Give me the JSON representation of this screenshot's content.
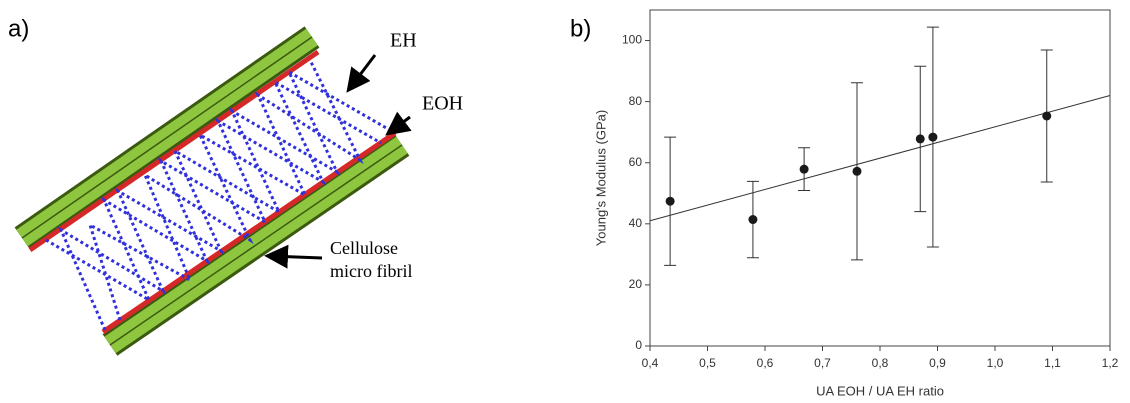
{
  "diagram": {
    "panel_label": "a)",
    "labels": [
      "EH",
      "EOH",
      "Cellulose",
      "micro fibril"
    ]
  },
  "chart_data": {
    "type": "scatter",
    "panel_label": "b)",
    "x_label": "UA EOH / UA EH ratio",
    "y_label": "Young's Modulus (GPa)",
    "x": [
      0.435,
      0.579,
      0.668,
      0.76,
      0.87,
      0.892,
      1.09
    ],
    "values": [
      47.4,
      41.4,
      57.9,
      57.2,
      67.8,
      68.4,
      75.3
    ],
    "errors": [
      21,
      12.5,
      7,
      29,
      23.8,
      36,
      21.6
    ],
    "color": "#1a1a1a",
    "fit_line": {
      "x": [
        0.4,
        1.2
      ],
      "y": [
        41,
        82
      ]
    },
    "xlim": [
      0.4,
      1.2
    ],
    "xticks": [
      {
        "value": 0.4,
        "label": "0,4"
      },
      {
        "value": 0.5,
        "label": "0,5"
      },
      {
        "value": 0.6,
        "label": "0,6"
      },
      {
        "value": 0.7,
        "label": "0,7"
      },
      {
        "value": 0.8,
        "label": "0,8"
      },
      {
        "value": 0.9,
        "label": "0,9"
      },
      {
        "value": 1.0,
        "label": "1,0"
      },
      {
        "value": 1.1,
        "label": "1,1"
      },
      {
        "value": 1.2,
        "label": "1,2"
      }
    ],
    "ylim": [
      0,
      110
    ],
    "yticks": [
      0,
      20,
      40,
      60,
      80,
      100
    ]
  }
}
